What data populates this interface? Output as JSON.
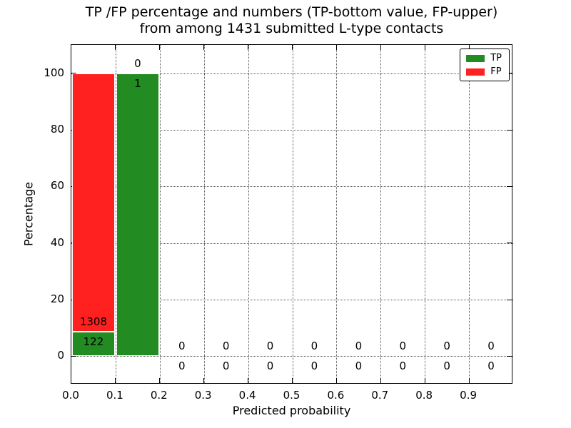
{
  "figure": {
    "title_line1": "TP /FP percentage and numbers (TP-bottom value, FP-upper)",
    "title_line2": "from among 1431 submitted L-type contacts",
    "background_color": "#ffffff"
  },
  "chart_data": {
    "type": "bar",
    "stacked": true,
    "title": "TP /FP percentage and numbers (TP-bottom value, FP-upper) from among 1431 submitted L-type contacts",
    "xlabel": "Predicted probability",
    "ylabel": "Percentage",
    "total_submitted_contacts": 1431,
    "xlim": [
      0,
      1
    ],
    "ylim": [
      -10,
      110
    ],
    "x_ticks": [
      "0.0",
      "0.1",
      "0.2",
      "0.3",
      "0.4",
      "0.5",
      "0.6",
      "0.7",
      "0.8",
      "0.9"
    ],
    "y_ticks": [
      "0",
      "20",
      "40",
      "60",
      "80",
      "100"
    ],
    "grid_style": "dotted",
    "legend": {
      "position": "upper right",
      "items": [
        {
          "label": "TP",
          "color": "#228b22"
        },
        {
          "label": "FP",
          "color": "#ff2020"
        }
      ]
    },
    "bins": [
      {
        "x0": 0.0,
        "x1": 0.1,
        "tp_count": 122,
        "fp_count": 1308,
        "tp_pct": 8.53,
        "fp_pct": 91.47
      },
      {
        "x0": 0.1,
        "x1": 0.2,
        "tp_count": 1,
        "fp_count": 0,
        "tp_pct": 100,
        "fp_pct": 0
      },
      {
        "x0": 0.2,
        "x1": 0.3,
        "tp_count": 0,
        "fp_count": 0,
        "tp_pct": 0,
        "fp_pct": 0
      },
      {
        "x0": 0.3,
        "x1": 0.4,
        "tp_count": 0,
        "fp_count": 0,
        "tp_pct": 0,
        "fp_pct": 0
      },
      {
        "x0": 0.4,
        "x1": 0.5,
        "tp_count": 0,
        "fp_count": 0,
        "tp_pct": 0,
        "fp_pct": 0
      },
      {
        "x0": 0.5,
        "x1": 0.6,
        "tp_count": 0,
        "fp_count": 0,
        "tp_pct": 0,
        "fp_pct": 0
      },
      {
        "x0": 0.6,
        "x1": 0.7,
        "tp_count": 0,
        "fp_count": 0,
        "tp_pct": 0,
        "fp_pct": 0
      },
      {
        "x0": 0.7,
        "x1": 0.8,
        "tp_count": 0,
        "fp_count": 0,
        "tp_pct": 0,
        "fp_pct": 0
      },
      {
        "x0": 0.8,
        "x1": 0.9,
        "tp_count": 0,
        "fp_count": 0,
        "tp_pct": 0,
        "fp_pct": 0
      },
      {
        "x0": 0.9,
        "x1": 1.0,
        "tp_count": 0,
        "fp_count": 0,
        "tp_pct": 0,
        "fp_pct": 0
      }
    ]
  }
}
